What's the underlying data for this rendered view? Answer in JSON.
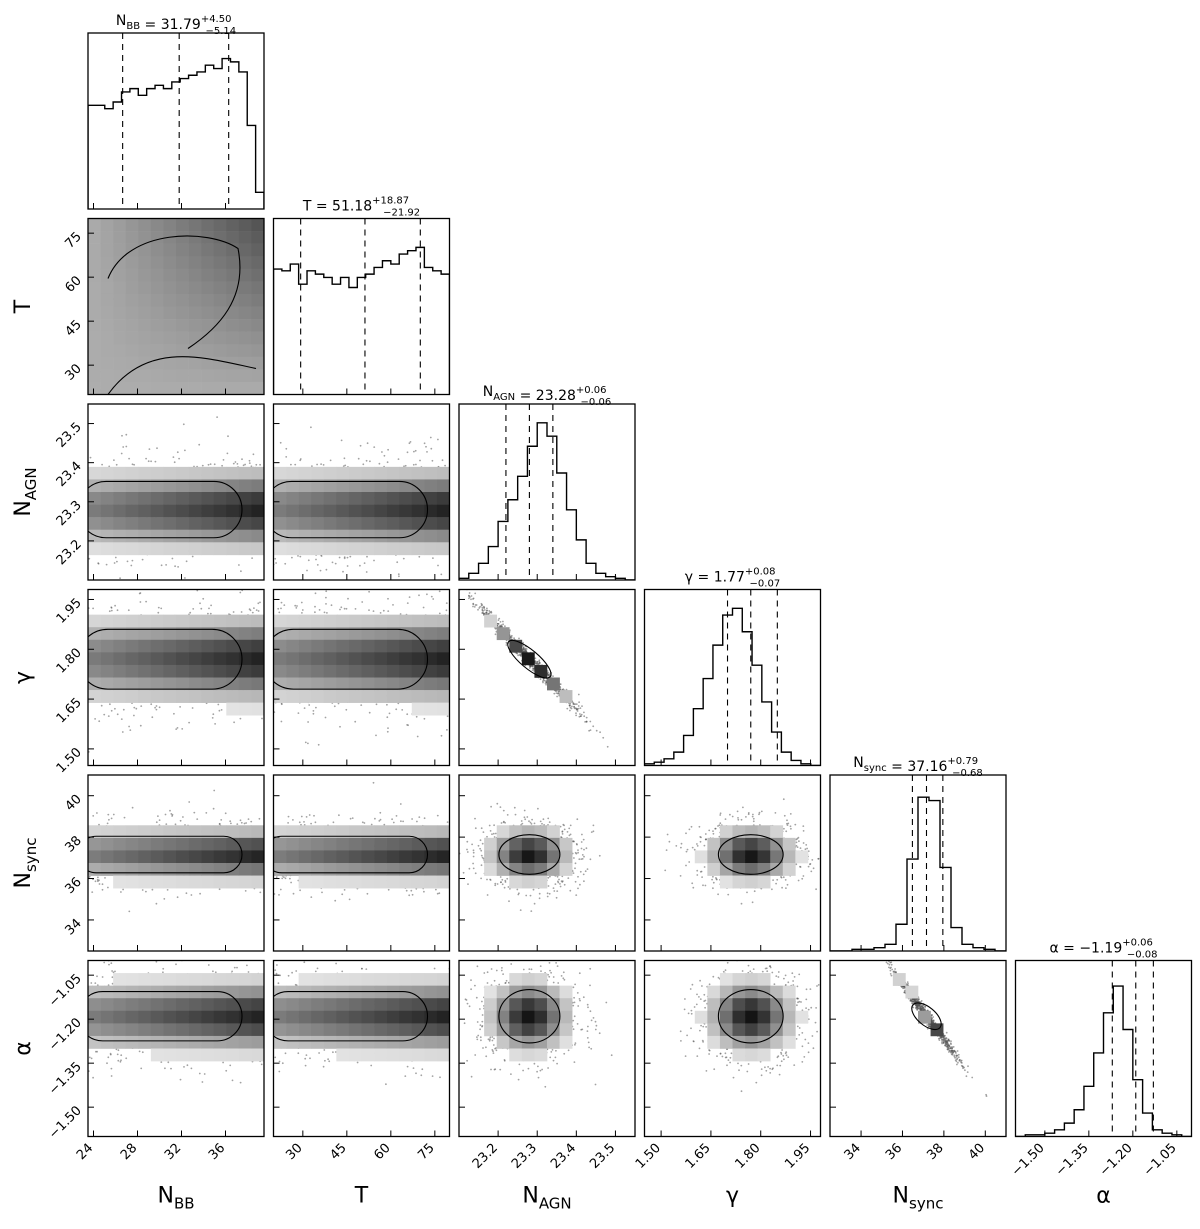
{
  "chart_data": {
    "type": "corner",
    "parameters": [
      {
        "key": "nbb",
        "label": "N",
        "label_sub": "BB",
        "range": [
          23.5,
          39.5
        ],
        "ticks": [
          24,
          28,
          32,
          36
        ],
        "tick_labels": [
          "24",
          "28",
          "32",
          "36"
        ],
        "median": 31.79,
        "err_plus": 4.5,
        "err_minus": 5.14,
        "title_prefix": "N",
        "title_sub": "BB",
        "title_median": " = 31.79",
        "title_plus": "+4.50",
        "title_minus": "−5.14",
        "hist": [
          0.62,
          0.62,
          0.6,
          0.64,
          0.7,
          0.72,
          0.68,
          0.72,
          0.74,
          0.72,
          0.76,
          0.78,
          0.8,
          0.82,
          0.86,
          0.84,
          0.9,
          0.88,
          0.82,
          0.5,
          0.1
        ]
      },
      {
        "key": "t",
        "label": "T",
        "label_sub": "",
        "range": [
          20,
          80
        ],
        "ticks": [
          30,
          45,
          60,
          75
        ],
        "tick_labels": [
          "30",
          "45",
          "60",
          "75"
        ],
        "median": 51.18,
        "err_plus": 18.87,
        "err_minus": 21.92,
        "title_prefix": "T",
        "title_sub": "",
        "title_median": " = 51.18",
        "title_plus": "+18.87",
        "title_minus": "−21.92",
        "hist": [
          0.75,
          0.74,
          0.78,
          0.66,
          0.74,
          0.72,
          0.7,
          0.66,
          0.7,
          0.64,
          0.7,
          0.72,
          0.76,
          0.8,
          0.78,
          0.84,
          0.86,
          0.88,
          0.76,
          0.74,
          0.72
        ]
      },
      {
        "key": "nagn",
        "label": "N",
        "label_sub": "AGN",
        "range": [
          23.1,
          23.55
        ],
        "ticks": [
          23.2,
          23.3,
          23.4,
          23.5
        ],
        "tick_labels": [
          "23.2",
          "23.3",
          "23.4",
          "23.5"
        ],
        "median": 23.28,
        "err_plus": 0.06,
        "err_minus": 0.06,
        "title_prefix": "N",
        "title_sub": "AGN",
        "title_median": " = 23.28",
        "title_plus": "+0.06",
        "title_minus": "−0.06",
        "hist": [
          0.01,
          0.04,
          0.1,
          0.2,
          0.35,
          0.48,
          0.62,
          0.8,
          0.94,
          0.86,
          0.64,
          0.42,
          0.24,
          0.1,
          0.04,
          0.02,
          0.01,
          0.0
        ]
      },
      {
        "key": "gamma",
        "label": "γ",
        "label_sub": "",
        "range": [
          1.45,
          1.98
        ],
        "ticks": [
          1.5,
          1.65,
          1.8,
          1.95
        ],
        "tick_labels": [
          "1.50",
          "1.65",
          "1.80",
          "1.95"
        ],
        "median": 1.77,
        "err_plus": 0.08,
        "err_minus": 0.07,
        "title_prefix": "γ",
        "title_sub": "",
        "title_median": " = 1.77",
        "title_plus": "+0.08",
        "title_minus": "−0.07",
        "hist": [
          0.01,
          0.02,
          0.04,
          0.08,
          0.18,
          0.34,
          0.52,
          0.72,
          0.9,
          0.94,
          0.8,
          0.6,
          0.38,
          0.2,
          0.08,
          0.03,
          0.01,
          0.0
        ]
      },
      {
        "key": "nsync",
        "label": "N",
        "label_sub": "sync",
        "range": [
          32.5,
          41.0
        ],
        "ticks": [
          34,
          36,
          38,
          40
        ],
        "tick_labels": [
          "34",
          "36",
          "38",
          "40"
        ],
        "median": 37.16,
        "err_plus": 0.79,
        "err_minus": 0.68,
        "title_prefix": "N",
        "title_sub": "sync",
        "title_median": " = 37.16",
        "title_plus": "+0.79",
        "title_minus": "−0.68",
        "hist": [
          0.0,
          0.0,
          0.01,
          0.01,
          0.02,
          0.04,
          0.16,
          0.55,
          0.92,
          0.9,
          0.5,
          0.14,
          0.04,
          0.02,
          0.01,
          0.0
        ]
      },
      {
        "key": "alpha",
        "label": "α",
        "label_sub": "",
        "range": [
          -1.6,
          -1.0
        ],
        "ticks": [
          -1.5,
          -1.35,
          -1.2,
          -1.05
        ],
        "tick_labels": [
          "−1.50",
          "−1.35",
          "−1.20",
          "−1.05"
        ],
        "median": -1.19,
        "err_plus": 0.06,
        "err_minus": 0.08,
        "title_prefix": "α",
        "title_sub": "",
        "title_median": " = −1.19",
        "title_plus": "+0.06",
        "title_minus": "−0.08",
        "hist": [
          0.0,
          0.01,
          0.01,
          0.02,
          0.04,
          0.08,
          0.16,
          0.3,
          0.5,
          0.74,
          0.9,
          0.64,
          0.34,
          0.14,
          0.04,
          0.02,
          0.01,
          0.0
        ]
      }
    ],
    "correlations": {
      "nagn-gamma": -0.99,
      "nsync-alpha": -0.99
    },
    "grid": false
  }
}
